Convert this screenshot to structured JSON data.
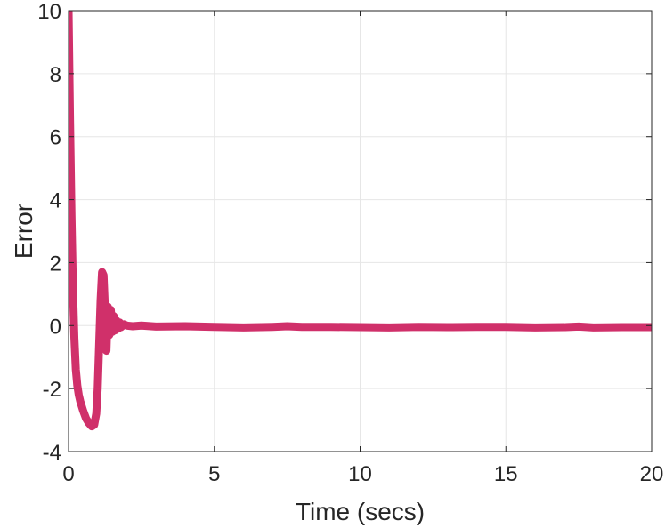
{
  "chart_data": {
    "type": "line",
    "xlabel": "Time (secs)",
    "ylabel": "Error",
    "xlim": [
      0,
      20
    ],
    "ylim": [
      -4,
      10
    ],
    "x_ticks": [
      "0",
      "5",
      "10",
      "15",
      "20"
    ],
    "y_ticks": [
      "-4",
      "-2",
      "0",
      "2",
      "4",
      "6",
      "8",
      "10"
    ],
    "grid": true,
    "box": true,
    "series": [
      {
        "color": "#d0306a",
        "x": [
          0,
          0.05,
          0.1,
          0.15,
          0.2,
          0.25,
          0.3,
          0.35,
          0.4,
          0.5,
          0.6,
          0.7,
          0.8,
          0.88,
          0.95,
          1.0,
          1.05,
          1.1,
          1.15,
          1.2,
          1.25,
          1.3,
          1.35,
          1.4,
          1.45,
          1.5,
          1.55,
          1.6,
          1.65,
          1.7,
          1.75,
          1.8,
          1.9,
          2.0,
          2.2,
          2.5,
          3.0,
          4.0,
          5.0,
          6.0,
          7.0,
          7.5,
          8.0,
          9.0,
          10.0,
          11.0,
          12.0,
          13.0,
          14.0,
          15.0,
          16.0,
          17.0,
          17.5,
          18.0,
          19.0,
          20.0
        ],
        "y": [
          10,
          6.5,
          3.5,
          1.2,
          -0.4,
          -1.4,
          -1.9,
          -2.2,
          -2.4,
          -2.7,
          -2.95,
          -3.1,
          -3.2,
          -3.15,
          -2.8,
          -2.0,
          -0.6,
          0.8,
          1.7,
          1.6,
          0.5,
          -0.8,
          0.6,
          -0.3,
          0.5,
          -0.2,
          0.3,
          -0.15,
          0.15,
          -0.1,
          0.1,
          -0.05,
          0.04,
          0.0,
          -0.02,
          0.0,
          -0.03,
          -0.02,
          -0.04,
          -0.06,
          -0.04,
          -0.02,
          -0.04,
          -0.04,
          -0.05,
          -0.06,
          -0.04,
          -0.05,
          -0.04,
          -0.04,
          -0.06,
          -0.05,
          -0.03,
          -0.06,
          -0.05,
          -0.05
        ]
      }
    ]
  }
}
